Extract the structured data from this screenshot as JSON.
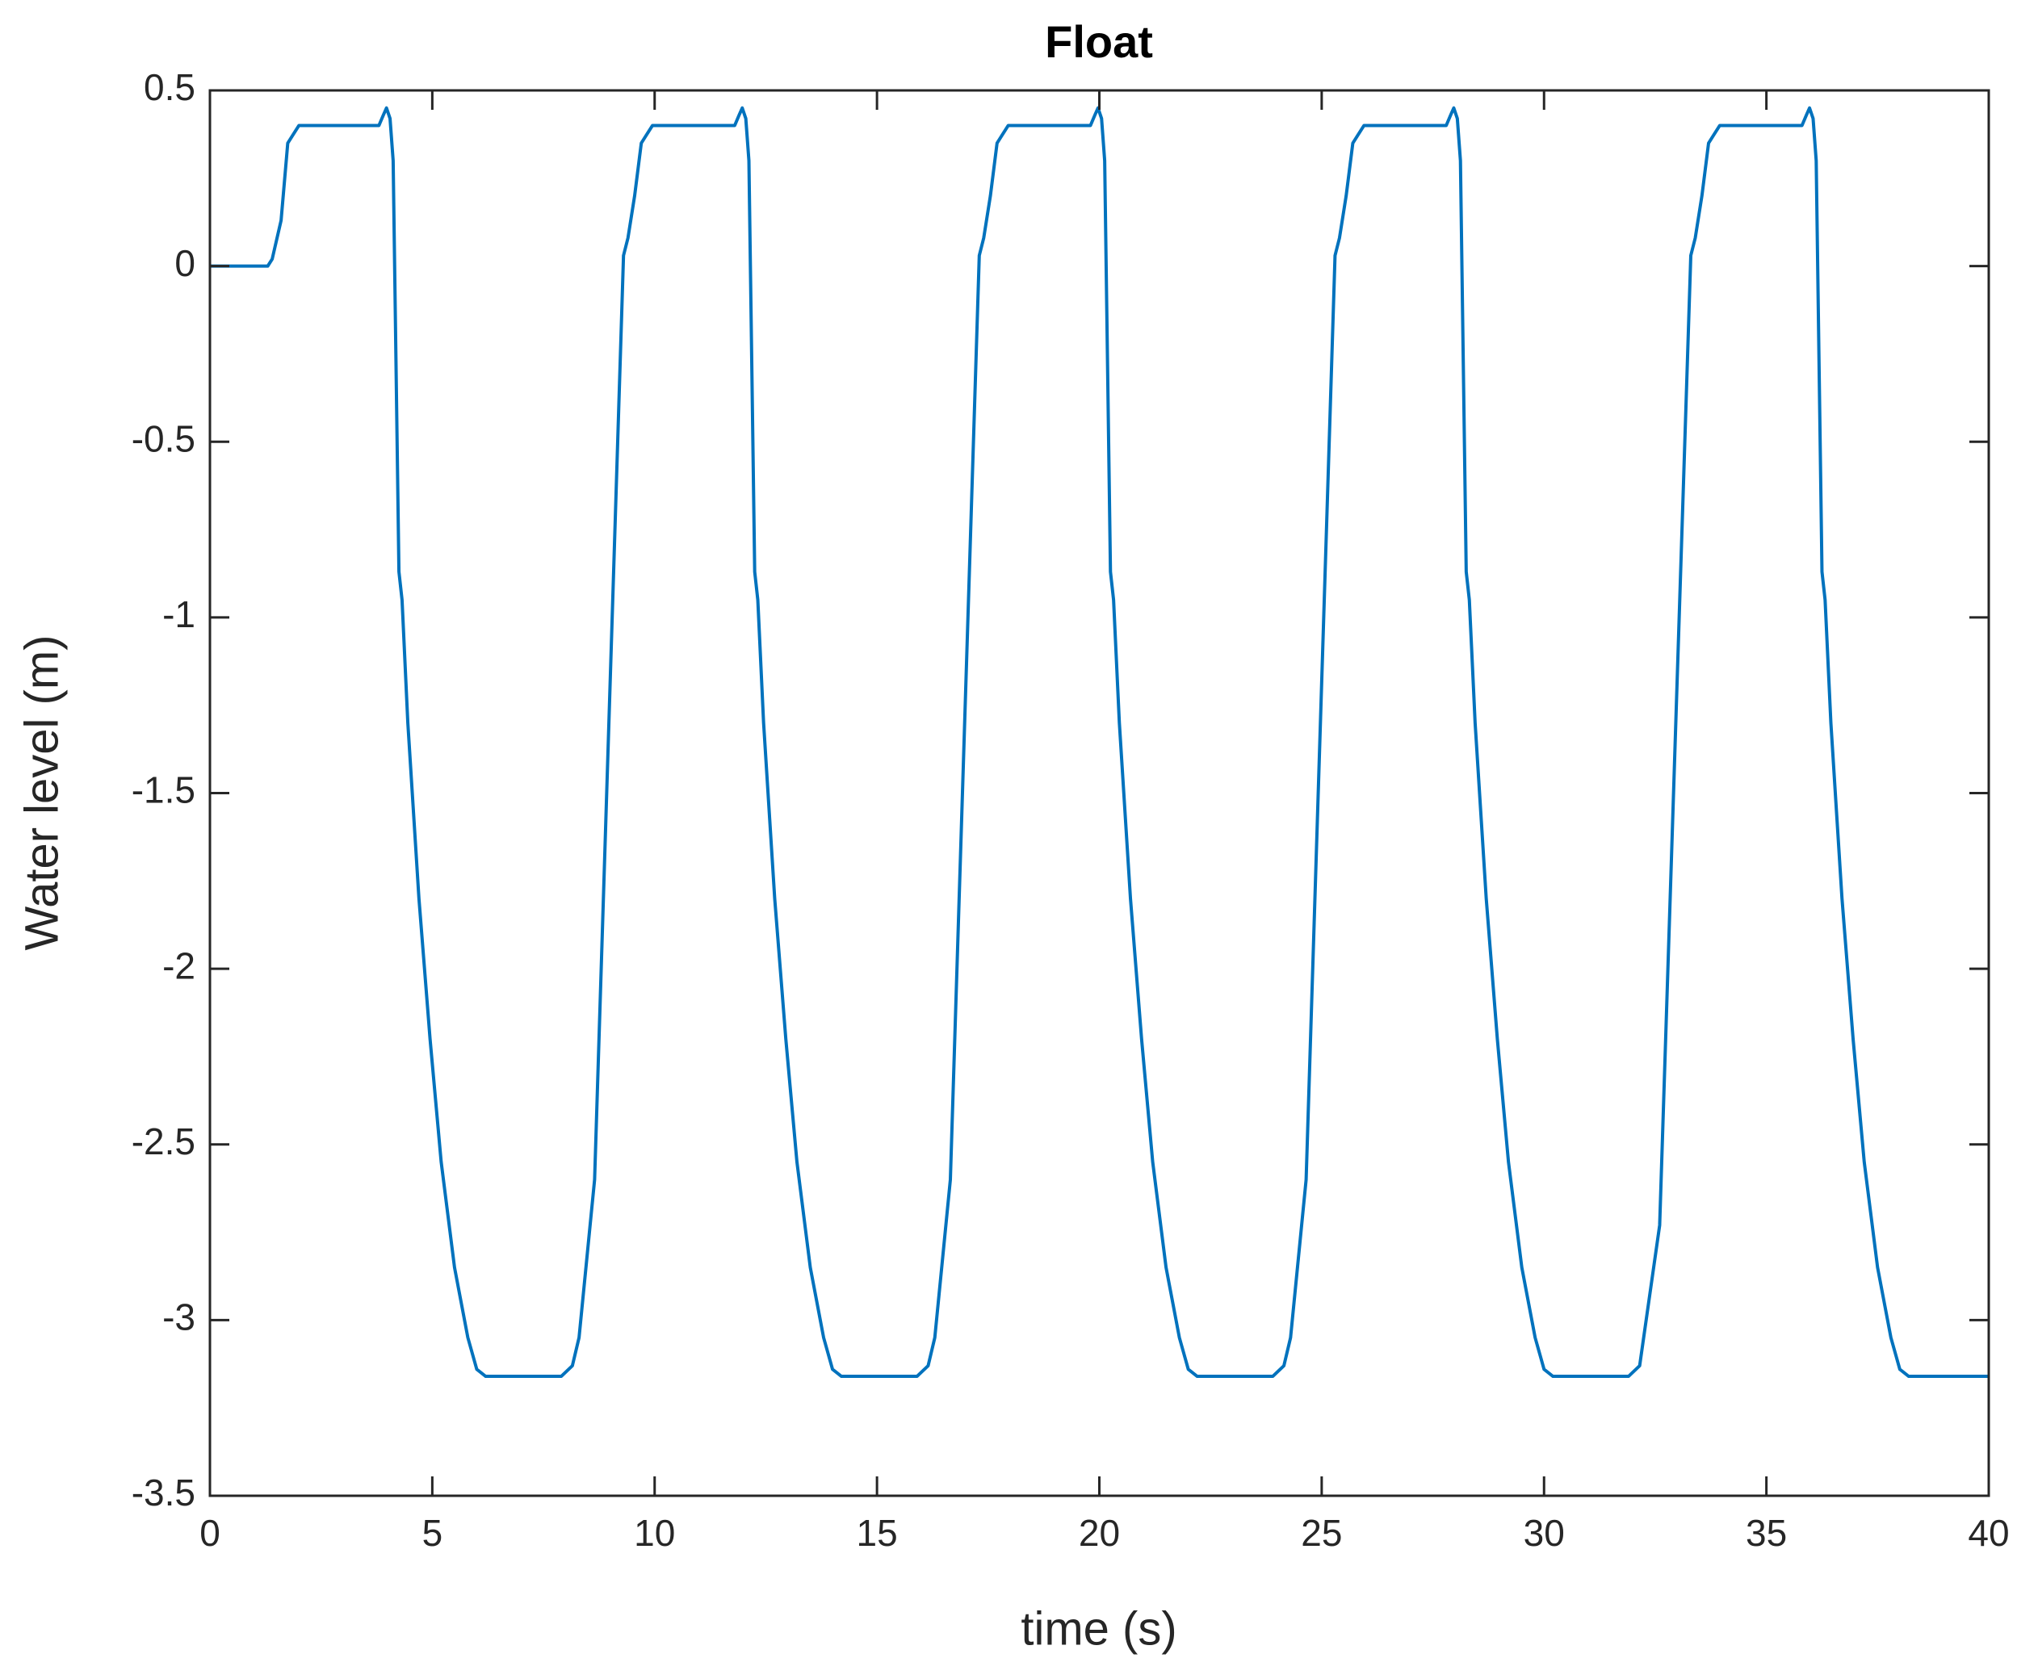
{
  "chart_data": {
    "type": "line",
    "title": "Float",
    "xlabel": "time (s)",
    "ylabel": "Water level (m)",
    "xlim": [
      0,
      40
    ],
    "ylim": [
      -3.5,
      0.5
    ],
    "xticks": [
      0,
      5,
      10,
      15,
      20,
      25,
      30,
      35,
      40
    ],
    "yticks": [
      0.5,
      0,
      -0.5,
      -1,
      -1.5,
      -2,
      -2.5,
      -3,
      -3.5
    ],
    "series": [
      {
        "name": "Float",
        "color": "#0072bd",
        "x": [
          0,
          1.3,
          1.4,
          1.6,
          1.75,
          1.85,
          2.0,
          3.8,
          3.9,
          3.97,
          4.05,
          4.12,
          4.25,
          4.32,
          4.45,
          4.7,
          4.95,
          5.2,
          5.5,
          5.8,
          6.0,
          6.2,
          7.9,
          8.15,
          8.3,
          8.65,
          9.3,
          9.4,
          9.55,
          9.7,
          9.8,
          9.95,
          11.8,
          11.9,
          11.97,
          12.05,
          12.12,
          12.25,
          12.32,
          12.45,
          12.7,
          12.95,
          13.2,
          13.5,
          13.8,
          14.0,
          14.2,
          15.9,
          16.15,
          16.3,
          16.65,
          17.3,
          17.4,
          17.55,
          17.7,
          17.8,
          17.95,
          19.8,
          19.9,
          19.97,
          20.05,
          20.12,
          20.25,
          20.32,
          20.45,
          20.7,
          20.95,
          21.2,
          21.5,
          21.8,
          22.0,
          22.2,
          23.9,
          24.15,
          24.3,
          24.65,
          25.3,
          25.4,
          25.55,
          25.7,
          25.8,
          25.95,
          27.8,
          27.9,
          27.97,
          28.05,
          28.12,
          28.25,
          28.32,
          28.45,
          28.7,
          28.95,
          29.2,
          29.5,
          29.8,
          30.0,
          30.2,
          31.9,
          32.15,
          32.6,
          33.3,
          33.4,
          33.55,
          33.7,
          33.8,
          33.95,
          35.8,
          35.9,
          35.97,
          36.05,
          36.12,
          36.25,
          36.32,
          36.45,
          36.7,
          36.95,
          37.2,
          37.5,
          37.8,
          38.0,
          38.2,
          40
        ],
        "values": [
          0,
          0,
          0.02,
          0.13,
          0.35,
          0.37,
          0.4,
          0.4,
          0.43,
          0.45,
          0.42,
          0.3,
          -0.87,
          -0.95,
          -1.3,
          -1.8,
          -2.2,
          -2.55,
          -2.85,
          -3.05,
          -3.14,
          -3.16,
          -3.16,
          -3.13,
          -3.05,
          -2.6,
          0.03,
          0.08,
          0.2,
          0.35,
          0.37,
          0.4,
          0.4,
          0.43,
          0.45,
          0.42,
          0.3,
          -0.87,
          -0.95,
          -1.3,
          -1.8,
          -2.2,
          -2.55,
          -2.85,
          -3.05,
          -3.14,
          -3.16,
          -3.16,
          -3.13,
          -3.05,
          -2.6,
          0.03,
          0.08,
          0.2,
          0.35,
          0.37,
          0.4,
          0.4,
          0.43,
          0.45,
          0.42,
          0.3,
          -0.87,
          -0.95,
          -1.3,
          -1.8,
          -2.2,
          -2.55,
          -2.85,
          -3.05,
          -3.14,
          -3.16,
          -3.16,
          -3.13,
          -3.05,
          -2.6,
          0.03,
          0.08,
          0.2,
          0.35,
          0.37,
          0.4,
          0.4,
          0.43,
          0.45,
          0.42,
          0.3,
          -0.87,
          -0.95,
          -1.3,
          -1.8,
          -2.2,
          -2.55,
          -2.85,
          -3.05,
          -3.14,
          -3.16,
          -3.16,
          -3.13,
          -2.73,
          0.03,
          0.08,
          0.2,
          0.35,
          0.37,
          0.4,
          0.4,
          0.43,
          0.45,
          0.42,
          0.3,
          -0.87,
          -0.95,
          -1.3,
          -1.8,
          -2.2,
          -2.55,
          -2.85,
          -3.05,
          -3.14,
          -3.16,
          -3.16
        ]
      }
    ]
  }
}
